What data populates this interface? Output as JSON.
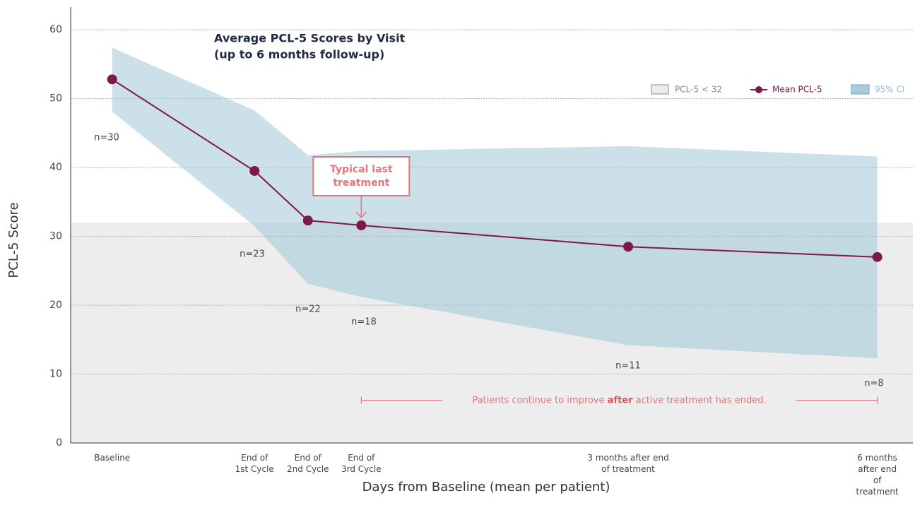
{
  "chart_data": {
    "type": "line",
    "title": [
      "Average PCL-5 Scores by Visit",
      "(up to 6 months follow-up)"
    ],
    "x_label": "Days from Baseline (mean per patient)",
    "y_label": "PCL-5 Score",
    "x": [
      0,
      48,
      66,
      84,
      174,
      258
    ],
    "xlim": [
      -14,
      270
    ],
    "xticks": [
      {
        "value": 0,
        "label": "Baseline"
      },
      {
        "value": 48,
        "label": "End of\n1st Cycle"
      },
      {
        "value": 66,
        "label": "End of\n2nd Cycle"
      },
      {
        "value": 84,
        "label": "End of\n3rd Cycle"
      },
      {
        "value": 174,
        "label": "3 months after end\nof treatment"
      },
      {
        "value": 258,
        "label": "6 months after end\nof treatment"
      }
    ],
    "ylim": [
      0,
      63.3
    ],
    "yticks": [
      0,
      10,
      20,
      30,
      40,
      50,
      60
    ],
    "grid": true,
    "series": [
      {
        "name": "Mean PCL-5",
        "color": "#7e1848",
        "values": [
          52.8,
          39.5,
          32.3,
          31.6,
          28.5,
          27.0
        ]
      }
    ],
    "ci": {
      "name": "95% CI",
      "color": "#a9cbda",
      "upper": [
        57.4,
        48.3,
        41.8,
        42.4,
        43.1,
        41.6
      ],
      "lower": [
        48.1,
        31.5,
        23.1,
        21.2,
        14.2,
        12.3
      ]
    },
    "threshold": {
      "name": "PCL-5 < 32",
      "value": 32,
      "color": "#ecedec"
    },
    "sample_sizes": [
      "n=30",
      "n=23",
      "n=22",
      "n=18",
      "n=11",
      "n=8"
    ],
    "annotation": {
      "lines": [
        "Typical last",
        "treatment"
      ],
      "x": 84,
      "color": "#e8737a"
    },
    "bracket": {
      "x": [
        84,
        258
      ],
      "y": 6.2,
      "text": [
        "Patients continue to improve ",
        "after",
        " active treatment has ended."
      ],
      "color": "#e8737a"
    }
  }
}
